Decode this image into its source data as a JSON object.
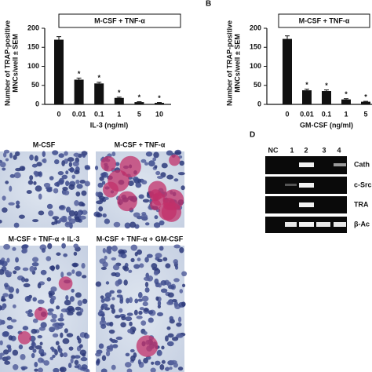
{
  "chart_data": [
    {
      "type": "bar",
      "header": "M-CSF + TNF-α",
      "y_label": [
        "Number of TRAP-positive",
        "MNCs/well ± SEM"
      ],
      "x_label": "IL-3 (ng/ml)",
      "categories": [
        "0",
        "0.01",
        "0.1",
        "1",
        "5",
        "10"
      ],
      "values": [
        170,
        65,
        55,
        17,
        6,
        4
      ],
      "errors": [
        8,
        4,
        3,
        2,
        1,
        1
      ],
      "significance": [
        null,
        "*",
        "*",
        "*",
        "*",
        "*"
      ],
      "color": "#111111",
      "ylim": [
        0,
        200
      ],
      "yticks": [
        0,
        50,
        100,
        150,
        200
      ]
    },
    {
      "type": "bar",
      "panel_label": "B",
      "header": "M-CSF + TNF-α",
      "y_label": [
        "Number of TRAP-positive",
        "MNCs/well ± SEM"
      ],
      "x_label": "GM-CSF (ng/ml)",
      "categories": [
        "0",
        "0.01",
        "0.1",
        "1",
        "5"
      ],
      "values": [
        172,
        37,
        35,
        13,
        7
      ],
      "errors": [
        8,
        3,
        3,
        2,
        1
      ],
      "significance": [
        null,
        "*",
        "*",
        "*",
        "*"
      ],
      "color": "#111111",
      "ylim": [
        0,
        200
      ],
      "yticks": [
        0,
        50,
        100,
        150,
        200
      ]
    }
  ],
  "micrographs": [
    "M-CSF",
    "M-CSF + TNF-α",
    "M-CSF + TNF-α + IL-3",
    "M-CSF + TNF-α + GM-CSF"
  ],
  "gel": {
    "panel_label": "D",
    "lanes": [
      "NC",
      "1",
      "2",
      "3",
      "4"
    ],
    "rows": [
      "Cath",
      "c-Src",
      "TRA",
      "β-Ac"
    ]
  }
}
